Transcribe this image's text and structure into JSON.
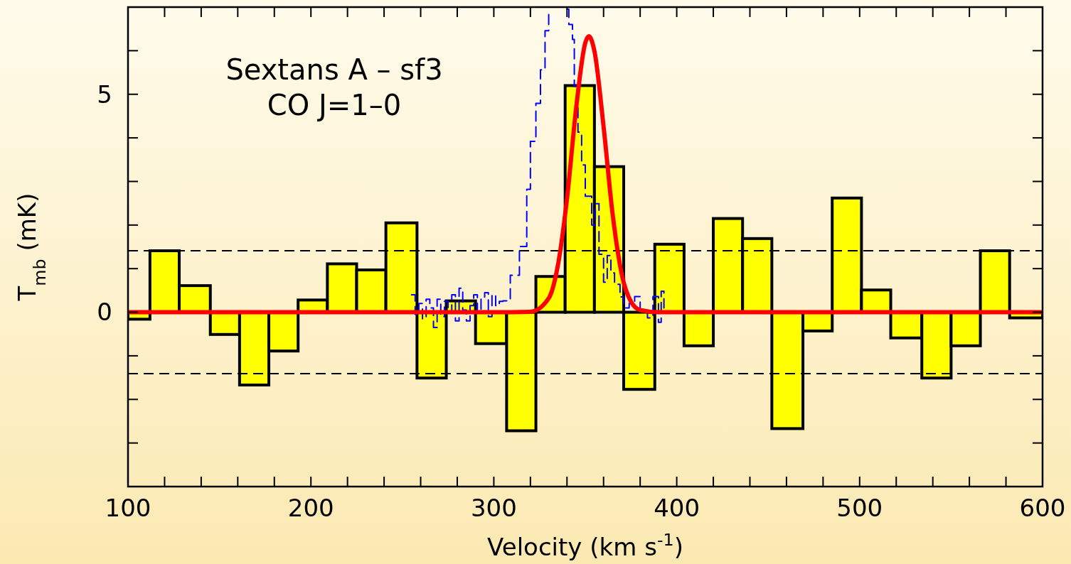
{
  "chart_data": {
    "type": "histogram",
    "xlabel": "Velocity (km s$^{-1}$)",
    "ylabel": "T$_{mb}$ (mK)",
    "annotations": [
      "Sextans A – sf3",
      "CO J=1–0"
    ],
    "xlim": [
      100,
      600
    ],
    "ylim": [
      -4,
      7
    ],
    "xticks": [
      100,
      {
        "value": 120,
        "label": null
      },
      {
        "value": 140,
        "label": null
      },
      {
        "value": 160,
        "label": null
      },
      {
        "value": 180,
        "label": null
      },
      200,
      {
        "value": 220,
        "label": null
      },
      {
        "value": 240,
        "label": null
      },
      {
        "value": 260,
        "label": null
      },
      {
        "value": 280,
        "label": null
      },
      300,
      {
        "value": 320,
        "label": null
      },
      {
        "value": 340,
        "label": null
      },
      {
        "value": 360,
        "label": null
      },
      {
        "value": 380,
        "label": null
      },
      400,
      {
        "value": 420,
        "label": null
      },
      {
        "value": 440,
        "label": null
      },
      {
        "value": 460,
        "label": null
      },
      {
        "value": 480,
        "label": null
      },
      500,
      {
        "value": 520,
        "label": null
      },
      {
        "value": 540,
        "label": null
      },
      {
        "value": 560,
        "label": null
      },
      {
        "value": 580,
        "label": null
      },
      600
    ],
    "yticks": [
      {
        "value": -4,
        "label": null
      },
      {
        "value": -3,
        "label": null
      },
      {
        "value": -2,
        "label": null
      },
      {
        "value": -1,
        "label": null
      },
      0,
      {
        "value": 1,
        "label": null
      },
      {
        "value": 2,
        "label": null
      },
      {
        "value": 3,
        "label": null
      },
      {
        "value": 4,
        "label": null
      },
      5,
      {
        "value": 6,
        "label": null
      },
      {
        "value": 7,
        "label": null
      }
    ],
    "ref_lines": [
      {
        "axis": "y",
        "value": 1.41,
        "color": "#000000",
        "line_style": "dashed"
      },
      {
        "axis": "y",
        "value": -1.41,
        "color": "#000000",
        "line_style": "dashed"
      }
    ],
    "series": [
      {
        "type": "histogram",
        "color": "#ffff00",
        "bins": [
          100,
          112,
          128,
          145,
          161,
          177,
          193,
          209,
          225,
          241,
          258,
          274,
          290,
          307,
          323,
          339,
          355,
          371,
          388,
          404,
          420,
          436,
          452,
          469,
          485,
          501,
          517,
          534,
          550,
          566,
          582,
          600
        ],
        "values": [
          -0.16,
          1.41,
          0.61,
          -0.51,
          -1.67,
          -0.89,
          0.28,
          1.11,
          0.97,
          2.05,
          -1.51,
          0.26,
          -0.72,
          -2.72,
          0.82,
          5.2,
          3.34,
          -1.77,
          1.56,
          -0.77,
          2.15,
          1.69,
          -2.67,
          -0.43,
          2.62,
          0.51,
          -0.59,
          -1.51,
          -0.77,
          1.41,
          -0.13
        ]
      },
      {
        "type": "step",
        "color": "#0000ff",
        "line_style": "dashed",
        "x": [
          255,
          257,
          259,
          261,
          263,
          265,
          267,
          269,
          271,
          273,
          275,
          277,
          279,
          281,
          283,
          285,
          287,
          289,
          291,
          293,
          295,
          297,
          299,
          301,
          303,
          305,
          309,
          314,
          318,
          320,
          323,
          325.5,
          328,
          330,
          335,
          340,
          341,
          343,
          344,
          346,
          348,
          350,
          353.5,
          355.5,
          357.5,
          360,
          362,
          364,
          366,
          369,
          371,
          374,
          377,
          380,
          384,
          387,
          390,
          391.5,
          393
        ],
        "values": [
          0.4,
          -0.05,
          0.2,
          -0.15,
          0.3,
          0.1,
          -0.35,
          0.3,
          -0.1,
          0.25,
          0.0,
          0.4,
          -0.2,
          0.55,
          0.05,
          -0.2,
          0.15,
          0.4,
          0.0,
          0.35,
          0.45,
          -0.1,
          0.4,
          0.15,
          0.25,
          0.26,
          0.85,
          1.51,
          2.82,
          3.92,
          4.79,
          5.56,
          6.46,
          6.95,
          null,
          6.95,
          6.6,
          6.26,
          5.18,
          4.13,
          3.38,
          2.66,
          2.0,
          2.49,
          1.33,
          0.69,
          1.3,
          0.9,
          0.64,
          0.35,
          0.1,
          0.2,
          0.36,
          0.05,
          -0.13,
          0.36,
          -0.23,
          0.48,
          0.1
        ]
      },
      {
        "type": "line",
        "color": "#ff0000",
        "x": [
          100,
          300,
          320,
          330,
          335,
          340,
          345,
          350,
          352,
          355,
          360,
          365,
          370,
          375,
          380,
          390,
          600
        ],
        "values": [
          0,
          0,
          0.01,
          0.32,
          1.07,
          2.6,
          4.68,
          6.18,
          6.33,
          5.99,
          4.26,
          2.23,
          0.86,
          0.24,
          0.05,
          0,
          0
        ]
      }
    ]
  }
}
